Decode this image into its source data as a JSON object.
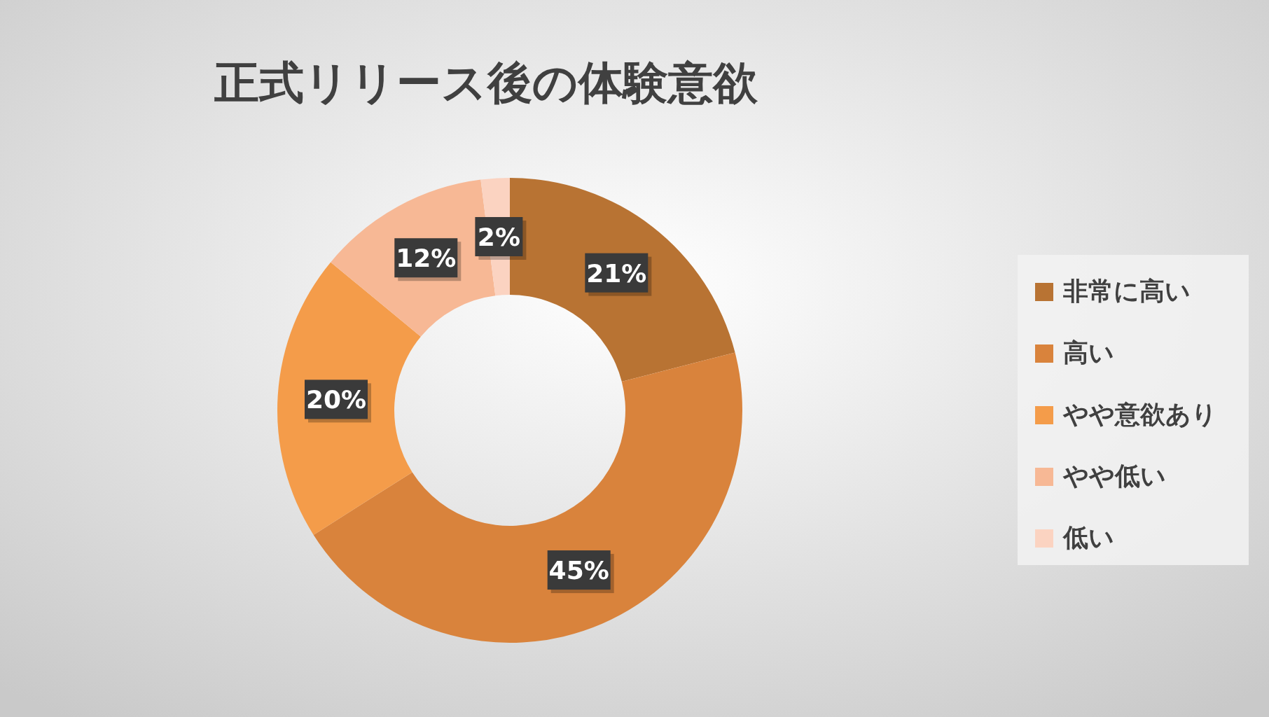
{
  "chart_data": {
    "type": "donut",
    "title": "正式リリース後の体験意欲",
    "categories": [
      "非常に高い",
      "高い",
      "やや意欲あり",
      "やや低い",
      "低い"
    ],
    "values": [
      21,
      45,
      20,
      12,
      2
    ],
    "value_labels": [
      "21%",
      "45%",
      "20%",
      "12%",
      "2%"
    ],
    "colors": [
      "#b87333",
      "#d9833c",
      "#f49c4a",
      "#f7b895",
      "#fbd3c1"
    ],
    "legend": "right"
  }
}
